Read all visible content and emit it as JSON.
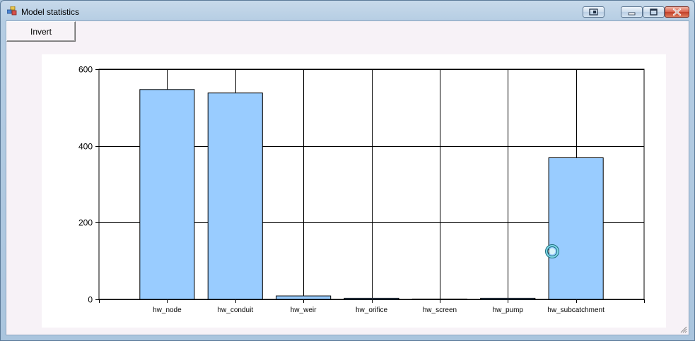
{
  "window": {
    "title": "Model statistics",
    "icon": "app-icon",
    "controls": [
      "restore-small-icon",
      "minimize-icon",
      "maximize-icon",
      "close-icon"
    ]
  },
  "toolbar": {
    "invert_label": "Invert"
  },
  "chart_data": {
    "type": "bar",
    "title": "",
    "xlabel": "",
    "ylabel": "",
    "categories": [
      "hw_node",
      "hw_conduit",
      "hw_weir",
      "hw_orifice",
      "hw_screen",
      "hw_pump",
      "hw_subcatchment"
    ],
    "values": [
      547,
      538,
      9,
      3,
      1,
      3,
      369
    ],
    "ylim": [
      0,
      600
    ],
    "yticks": [
      0,
      200,
      400,
      600
    ],
    "ytick_labels": [
      "0",
      "200",
      "400",
      "600"
    ],
    "grid": true,
    "legend": "none",
    "bar_color": "#99ccff",
    "bar_edge_color": "#000000"
  },
  "cursor": {
    "icon": "busy-ring-cursor-icon"
  }
}
